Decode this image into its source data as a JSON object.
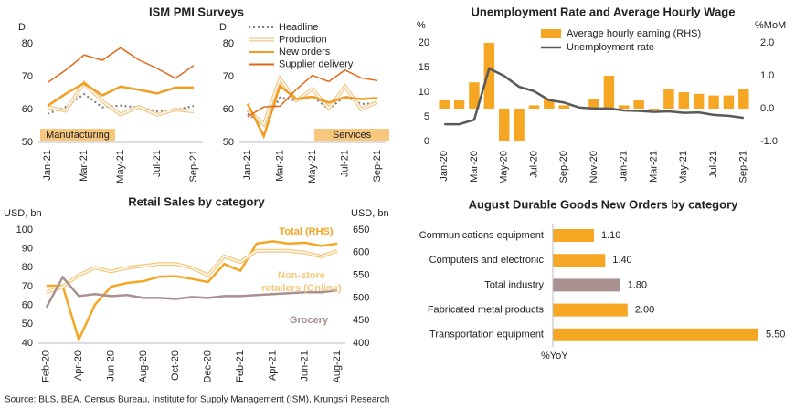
{
  "chart_data": [
    {
      "type": "line",
      "title": "ISM PMI Surveys",
      "ylabel": "DI",
      "ylim": [
        50,
        80
      ],
      "yticks": [
        50,
        60,
        70,
        80
      ],
      "categories": [
        "Jan-21",
        null,
        "Mar-21",
        null,
        "May-21",
        null,
        "Jul-21",
        null,
        "Sep-21"
      ],
      "panels": [
        {
          "label": "Manufacturing"
        },
        {
          "label": "Services"
        }
      ],
      "series": [
        {
          "name": "Headline",
          "color": "#7f7f7f",
          "style": "dotted",
          "values": [
            [
              58.7,
              60.8,
              64.7,
              60.7,
              61.2,
              60.6,
              59.5,
              59.9,
              61.1
            ],
            [
              58.7,
              55.3,
              63.7,
              62.7,
              64.0,
              60.1,
              64.1,
              61.7,
              61.9
            ]
          ]
        },
        {
          "name": "Production",
          "color": "#f2c98a",
          "style": "double",
          "values": [
            [
              60.7,
              59.6,
              68.1,
              62.5,
              58.5,
              60.8,
              58.4,
              60.0,
              59.4
            ],
            [
              59.9,
              55.5,
              69.4,
              62.7,
              66.2,
              60.4,
              67.0,
              60.1,
              62.3
            ]
          ]
        },
        {
          "name": "New orders",
          "color": "#f39c1f",
          "style": "thick",
          "values": [
            [
              61.1,
              64.8,
              68.0,
              64.3,
              67.0,
              66.0,
              64.9,
              66.7,
              66.7
            ],
            [
              61.8,
              51.9,
              67.2,
              63.2,
              63.9,
              62.1,
              63.7,
              63.2,
              63.5
            ]
          ]
        },
        {
          "name": "Supplier delivery",
          "color": "#e06a1b",
          "style": "thin",
          "values": [
            [
              68.2,
              72.0,
              76.6,
              75.0,
              78.8,
              75.1,
              72.5,
              69.5,
              73.4
            ],
            [
              57.8,
              60.8,
              61.0,
              66.1,
              70.4,
              68.5,
              72.0,
              69.6,
              68.8
            ]
          ]
        }
      ]
    },
    {
      "type": "bar_line",
      "title": "Unemployment Rate and Average Hourly Wage",
      "ylabel": "%",
      "y2label": "%MoM",
      "ylim": [
        0,
        20
      ],
      "yticks": [
        0,
        5,
        10,
        15,
        20
      ],
      "y2lim": [
        -1,
        2
      ],
      "y2ticks": [
        {
          "value": -1,
          "label": "-1.0"
        },
        {
          "value": 0,
          "label": "0.0"
        },
        {
          "value": 1,
          "label": "1.0"
        },
        {
          "value": 2,
          "label": "2.0"
        }
      ],
      "categories": [
        "Jan-20",
        null,
        "Mar-20",
        null,
        "May-20",
        null,
        "Jul-20",
        null,
        "Sep-20",
        null,
        "Nov-20",
        null,
        "Jan-21",
        null,
        "Mar-21",
        null,
        "May-21",
        null,
        "Jul-21",
        null,
        "Sep-21"
      ],
      "series": [
        {
          "name": "Average hourly earning (RHS)",
          "type": "bar",
          "axis": "y2",
          "color": "#f5a623",
          "values": [
            0.25,
            0.25,
            0.8,
            2.0,
            -1.0,
            -1.0,
            0.1,
            0.3,
            0.1,
            0.0,
            0.3,
            1.0,
            0.1,
            0.25,
            -0.05,
            0.6,
            0.5,
            0.45,
            0.4,
            0.4,
            0.6
          ]
        },
        {
          "name": "Unemployment rate",
          "type": "line",
          "color": "#595959",
          "values": [
            3.5,
            3.5,
            4.4,
            14.8,
            13.3,
            11.1,
            10.2,
            8.4,
            7.9,
            6.9,
            6.7,
            6.7,
            6.3,
            6.2,
            6.0,
            6.1,
            5.8,
            5.9,
            5.4,
            5.2,
            4.8
          ]
        }
      ]
    },
    {
      "type": "line",
      "title": "Retail Sales by category",
      "ylabel": "USD, bn",
      "y2label": "USD, bn",
      "ylim": [
        40,
        100
      ],
      "yticks": [
        40,
        50,
        60,
        70,
        80,
        90,
        100
      ],
      "y2lim": [
        400,
        650
      ],
      "y2ticks": [
        400,
        450,
        500,
        550,
        600,
        650
      ],
      "categories": [
        "Feb-20",
        null,
        "Apr-20",
        null,
        "Jun-20",
        null,
        "Aug-20",
        null,
        "Oct-20",
        null,
        "Dec-20",
        null,
        "Feb-21",
        null,
        "Apr-21",
        null,
        "Jun-21",
        null,
        "Aug-21"
      ],
      "series": [
        {
          "name": "Total (RHS)",
          "axis": "y2",
          "color": "#f5a623",
          "style": "thick",
          "values": [
            527,
            527,
            408,
            485,
            525,
            533,
            537,
            547,
            548,
            542,
            535,
            575,
            560,
            620,
            625,
            620,
            622,
            615,
            620
          ]
        },
        {
          "name": "Non-store retailers (Online)",
          "color": "#f5c97d",
          "style": "double",
          "values": [
            67,
            70,
            76,
            80,
            78,
            80,
            81,
            82,
            82,
            80,
            76,
            86,
            83,
            89,
            89,
            89,
            88,
            86,
            89
          ]
        },
        {
          "name": "Grocery",
          "color": "#a8918f",
          "style": "thick",
          "values": [
            59,
            75,
            65,
            66,
            65,
            65.5,
            64,
            64,
            63.5,
            64.5,
            64,
            65,
            65,
            65.5,
            66,
            66.5,
            67,
            67,
            68
          ]
        }
      ]
    },
    {
      "type": "hbar",
      "title": "August Durable Goods New Orders by category",
      "xlabel": "%YoY",
      "xlim": [
        0,
        5.5
      ],
      "categories": [
        "Communications equipment",
        "Computers and electronic",
        "Total industry",
        "Fabricated metal products",
        "Transportation equipment"
      ],
      "values": [
        1.1,
        1.4,
        1.8,
        2.0,
        5.5
      ],
      "value_labels": [
        "1.10",
        "1.40",
        "1.80",
        "2.00",
        "5.50"
      ],
      "colors": [
        "#f5a623",
        "#f5a623",
        "#a89190",
        "#f5a623",
        "#f5a623"
      ]
    }
  ],
  "source": "Source: BLS, BEA, Census Bureau, Institute for Supply Management (ISM), Krungsri Research"
}
